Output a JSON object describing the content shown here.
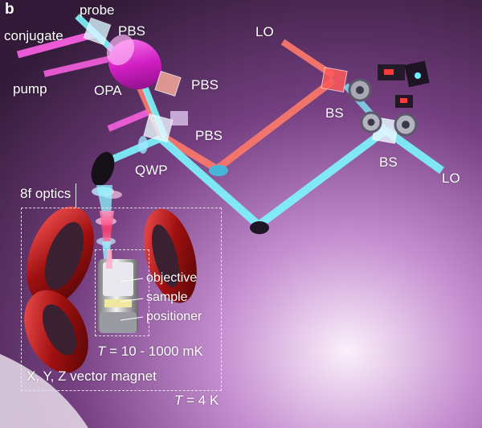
{
  "panel_label": "b",
  "labels": {
    "probe": "probe",
    "conjugate": "conjugate",
    "pbs_top": "PBS",
    "pump": "pump",
    "opa": "OPA",
    "pbs_mid": "PBS",
    "pbs_low": "PBS",
    "qwp": "QWP",
    "lo_top": "LO",
    "bs_upper": "BS",
    "bs_lower": "BS",
    "lo_right": "LO",
    "eight_f_optics": "8f optics",
    "objective": "objective",
    "sample": "sample",
    "positioner": "positioner",
    "magnet": "X, Y, Z vector magnet"
  },
  "temperatures": {
    "inner": {
      "symbol": "T",
      "value": "= 10 - 1000 mK"
    },
    "outer": {
      "symbol": "T",
      "value": "= 4 K"
    }
  },
  "colors": {
    "probe_beam": "#7ef6ff",
    "lo_beam": "#ff7a6a",
    "pump_beam": "#ff62e6",
    "magnet_coil": "#b01818"
  }
}
